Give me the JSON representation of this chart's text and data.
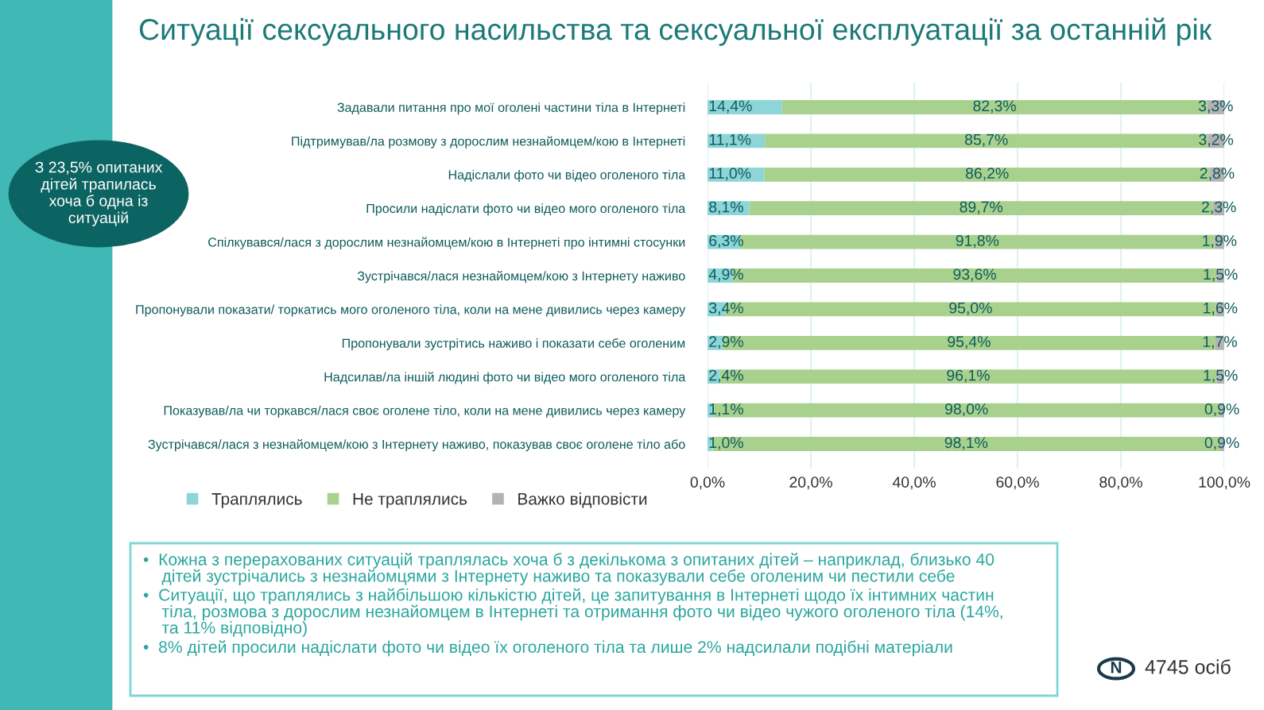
{
  "chart_data": {
    "type": "bar",
    "orientation": "horizontal",
    "stacked": true,
    "title": "Ситуації сексуального насильства та сексуальної експлуатації за останній рік",
    "categories": [
      "Задавали питання про мої оголені частини тіла в Інтернеті",
      "Підтримував/ла розмову з дорослим незнайомцем/кою в Інтернеті",
      "Надіслали фото чи відео оголеного тіла",
      "Просили надіслати фото чи відео мого оголеного тіла",
      "Спілкувався/лася з дорослим незнайомцем/кою в Інтернеті про інтимні стосунки",
      "Зустрічався/лася незнайомцем/кою з Інтернету наживо",
      "Пропонували показати/ торкатись мого оголеного тіла, коли на мене дивились через камеру",
      "Пропонували зустрітись наживо і показати себе оголеним",
      "Надсилав/ла іншій людині фото чи відео мого оголеного тіла",
      "Показував/ла чи торкався/лася своє оголене тіло, коли на мене дивились через камеру",
      "Зустрічався/лася з незнайомцем/кою з Інтернету наживо, показував своє оголене тіло або"
    ],
    "series": [
      {
        "name": "Траплялись",
        "color": "#8dd5d8",
        "values": [
          14.4,
          11.1,
          11.0,
          8.1,
          6.3,
          4.9,
          3.4,
          2.9,
          2.4,
          1.1,
          1.0
        ],
        "value_labels": [
          "14,4%",
          "11,1%",
          "11,0%",
          "8,1%",
          "6,3%",
          "4,9%",
          "3,4%",
          "2,9%",
          "2,4%",
          "1,1%",
          "1,0%"
        ]
      },
      {
        "name": "Не траплялись",
        "color": "#a9d18e",
        "values": [
          82.3,
          85.7,
          86.2,
          89.7,
          91.8,
          93.6,
          95.0,
          95.4,
          96.1,
          98.0,
          98.1
        ],
        "value_labels": [
          "82,3%",
          "85,7%",
          "86,2%",
          "89,7%",
          "91,8%",
          "93,6%",
          "95,0%",
          "95,4%",
          "96,1%",
          "98,0%",
          "98,1%"
        ]
      },
      {
        "name": "Важко відповісти",
        "color": "#b3b3b3",
        "values": [
          3.3,
          3.2,
          2.8,
          2.3,
          1.9,
          1.5,
          1.6,
          1.7,
          1.5,
          0.9,
          0.9
        ],
        "value_labels": [
          "3,3%",
          "3,2%",
          "2,8%",
          "2,3%",
          "1,9%",
          "1,5%",
          "1,6%",
          "1,7%",
          "1,5%",
          "0,9%",
          "0,9%"
        ]
      }
    ],
    "xlim": [
      0,
      100
    ],
    "xticks": [
      {
        "value": 0,
        "label": "0,0%"
      },
      {
        "value": 20,
        "label": "20,0%"
      },
      {
        "value": 40,
        "label": "40,0%"
      },
      {
        "value": 60,
        "label": "60,0%"
      },
      {
        "value": 80,
        "label": "80,0%"
      },
      {
        "value": 100,
        "label": "100,0%"
      }
    ],
    "grid": "x",
    "legend": "bottom left",
    "annotations": [
      "З 23,5% опитаних\nдітей трапилась\nхоча б одна із\nситуацій",
      "•  Кожна з перерахованих ситуацій траплялась хоча б з декількома з опитаних дітей – наприклад, близько 40\n    дітей зустрічались з незнайомцями з Інтернету наживо та показували себе оголеним чи пестили себе",
      "•  Ситуації, що траплялись з найбільшою кількістю дітей, це запитування в Інтернеті щодо їх інтимних частин\n    тіла, розмова з дорослим незнайомцем в Інтернеті та отримання фото чи відео чужого оголеного тіла (14%,\n    та 11% відповідно)",
      "•  8% дітей просили надіслати фото чи відео їх оголеного тіла та лише 2% надсилали подібні матеріали",
      "N",
      "4745 осіб"
    ]
  }
}
